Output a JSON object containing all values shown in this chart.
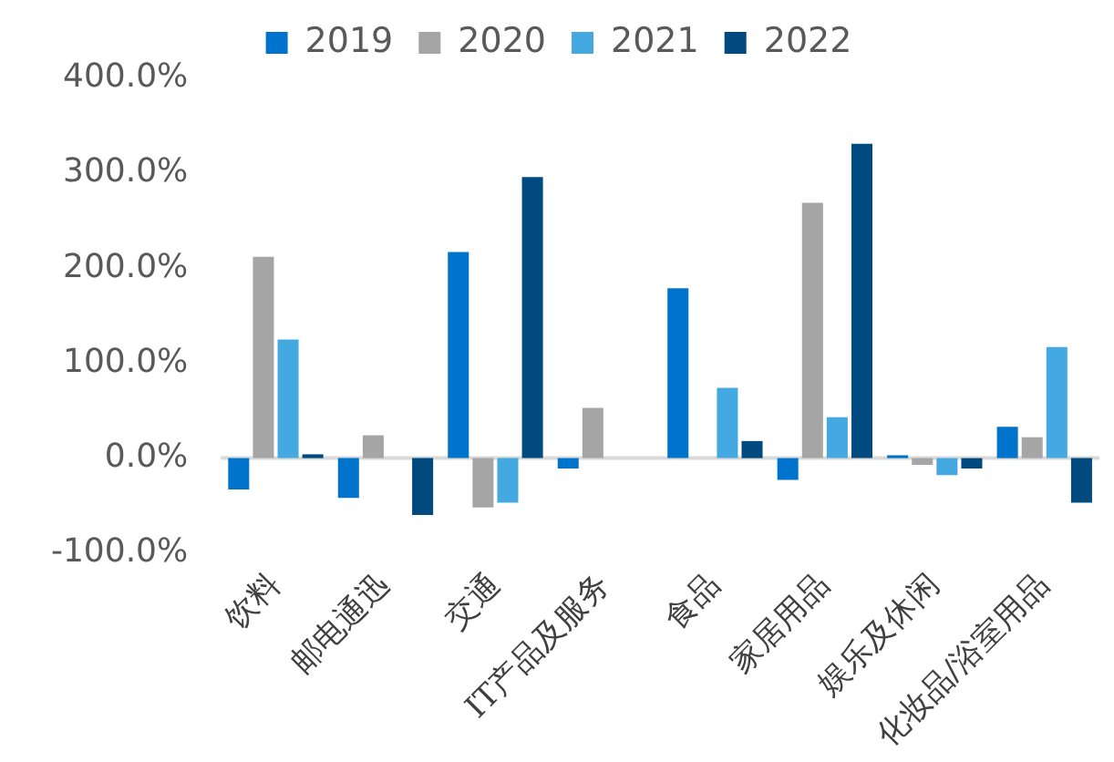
{
  "chart_data": {
    "type": "bar",
    "categories": [
      "饮料",
      "邮电通迅",
      "交通",
      "IT产品及服务",
      "食品",
      "家居用品",
      "娱乐及休闲",
      "化妆品/浴室用品"
    ],
    "series": [
      {
        "name": "2019",
        "color": "#0074cc",
        "values": [
          -33,
          -42,
          217,
          -11,
          179,
          -23,
          3,
          33
        ]
      },
      {
        "name": "2020",
        "color": "#a5a5a5",
        "values": [
          212,
          24,
          -52,
          53,
          null,
          269,
          -7,
          22
        ]
      },
      {
        "name": "2021",
        "color": "#45a9e1",
        "values": [
          125,
          null,
          -47,
          null,
          74,
          43,
          -18,
          117
        ]
      },
      {
        "name": "2022",
        "color": "#004a7f",
        "values": [
          4,
          -60,
          296,
          null,
          18,
          331,
          -11,
          -47
        ]
      }
    ],
    "ylim": [
      -100,
      400
    ],
    "yticks": [
      {
        "value": -100,
        "label": "-100.0%"
      },
      {
        "value": 0,
        "label": "0.0%"
      },
      {
        "value": 100,
        "label": "100.0%"
      },
      {
        "value": 200,
        "label": "200.0%"
      },
      {
        "value": 300,
        "label": "300.0%"
      },
      {
        "value": 400,
        "label": "400.0%"
      }
    ],
    "ref_lines": [
      {
        "axis": "y",
        "value": 0,
        "color": "#d9d9d9"
      }
    ],
    "grid": false,
    "legend": "top"
  }
}
